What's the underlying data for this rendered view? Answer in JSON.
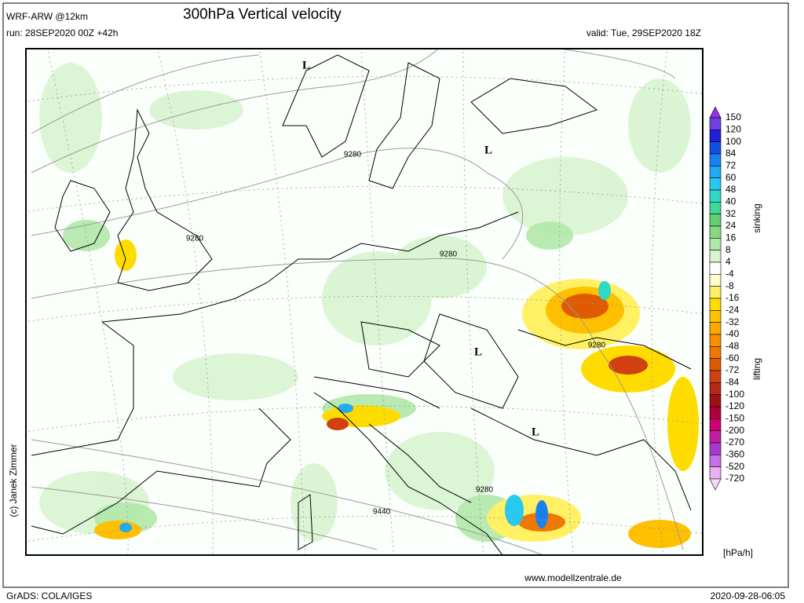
{
  "header": {
    "model": "WRF-ARW @12km",
    "title": "300hPa Vertical velocity",
    "run": "run: 28SEP2020 00Z +42h",
    "valid": "valid: Tue, 29SEP2020 18Z"
  },
  "colorbar": {
    "labels": [
      "150",
      "120",
      "100",
      "84",
      "72",
      "60",
      "48",
      "40",
      "32",
      "24",
      "16",
      "8",
      "4",
      "-4",
      "-8",
      "-16",
      "-24",
      "-32",
      "-40",
      "-48",
      "-60",
      "-72",
      "-84",
      "-100",
      "-120",
      "-150",
      "-200",
      "-270",
      "-360",
      "-520",
      "-720"
    ],
    "colors": [
      "#9a30e8",
      "#7040e0",
      "#2020d8",
      "#1050e0",
      "#1a80f0",
      "#20aaf0",
      "#28c8f0",
      "#30d8c8",
      "#40d898",
      "#60d070",
      "#88d880",
      "#b0e8a8",
      "#d8f4d0",
      "#ffffff",
      "#fdfdd0",
      "#fff064",
      "#ffdc00",
      "#ffc000",
      "#ffa800",
      "#f89000",
      "#f07800",
      "#e05a00",
      "#d04010",
      "#b82818",
      "#a01018",
      "#b0003c",
      "#d00070",
      "#c020a0",
      "#a838d0",
      "#c870e8",
      "#e8b0f0",
      "#fcd8f8"
    ],
    "upper_label": "sinking",
    "lower_label": "lifting",
    "unit": "[hPa/h]"
  },
  "map": {
    "lows": [
      "L",
      "L",
      "L",
      "L"
    ],
    "contour_labels": [
      "9280",
      "9280",
      "9280",
      "9280",
      "9280",
      "9440"
    ]
  },
  "credit": "(c) Janek Zimmer",
  "footer": {
    "left": "GrADS: COLA/IGES",
    "website": "www.modellzentrale.de",
    "timestamp": "2020-09-28-06:05"
  }
}
